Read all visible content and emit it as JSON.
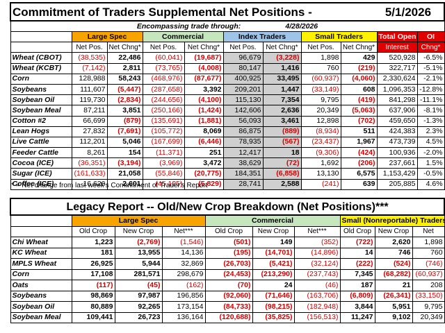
{
  "top": {
    "title": "Commitment of Traders Supplemental Net Positions -",
    "date": "5/1/2026",
    "encompassing_label": "Encompassing trade through:",
    "encompassing_date": "4/28/2026",
    "groups": [
      "Large Spec",
      "Commercial",
      "Index Traders",
      "Small Traders",
      "Total Open",
      "OI"
    ],
    "col_headers": [
      "Net Pos.",
      "Net Chng*",
      "Net Pos.",
      "Net Chng*",
      "Net Pos.",
      "Net Chng*",
      "Net Pos.",
      "Net Chng*",
      "Interest",
      "Chng*"
    ],
    "rows": [
      {
        "label": "Wheat (CBOT)",
        "v": [
          "(38,535)",
          "22,486",
          "(60,041)",
          "(19,687)",
          "96,679",
          "(3,228)",
          "1,898",
          "429",
          "520,928",
          "-6.5%"
        ]
      },
      {
        "label": "Wheat (KCBT)",
        "v": [
          "(7,142)",
          "2,811",
          "(73,765)",
          "(4,008)",
          "80,147",
          "1,416",
          "760",
          "(219)",
          "322,717",
          "-5.1%"
        ]
      },
      {
        "label": "Corn",
        "v": [
          "128,988",
          "58,243",
          "(468,976)",
          "(87,677)",
          "400,925",
          "33,495",
          "(60,937)",
          "(4,060)",
          "2,330,624",
          "-2.1%"
        ]
      },
      {
        "label": "Soybeans",
        "v": [
          "111,607",
          "(5,447)",
          "(287,658)",
          "3,392",
          "209,201",
          "1,447",
          "(33,149)",
          "608",
          "1,096,353",
          "-12.8%"
        ]
      },
      {
        "label": "Soybean Oil",
        "v": [
          "119,730",
          "(2,834)",
          "(244,656)",
          "(4,100)",
          "115,130",
          "7,354",
          "9,795",
          "(419)",
          "841,298",
          "-11.1%"
        ]
      },
      {
        "label": "Soybean Meal",
        "v": [
          "87,211",
          "3,851",
          "(250,166)",
          "(1,424)",
          "142,606",
          "2,636",
          "20,349",
          "(5,063)",
          "637,906",
          "-8.1%"
        ]
      },
      {
        "label": "Cotton #2",
        "v": [
          "66,699",
          "(879)",
          "(135,691)",
          "(1,881)",
          "56,093",
          "3,461",
          "12,898",
          "(702)",
          "459,650",
          "-1.3%"
        ]
      },
      {
        "label": "Lean Hogs",
        "v": [
          "27,832",
          "(7,691)",
          "(105,772)",
          "8,069",
          "86,875",
          "(889)",
          "(8,934)",
          "511",
          "424,383",
          "2.3%"
        ]
      },
      {
        "label": "Live Cattle",
        "v": [
          "112,201",
          "5,046",
          "(167,699)",
          "(6,446)",
          "78,935",
          "(567)",
          "(23,437)",
          "1,967",
          "473,739",
          "4.5%"
        ]
      },
      {
        "label": "Feeder Cattle",
        "v": [
          "8,261",
          "154",
          "(11,371)",
          "251",
          "12,417",
          "18",
          "(9,306)",
          "(424)",
          "100,936",
          "-2.0%"
        ]
      },
      {
        "label": "Cocoa (ICE)",
        "v": [
          "(36,351)",
          "(3,194)",
          "(3,969)",
          "3,472",
          "38,629",
          "(72)",
          "1,692",
          "(206)",
          "237,661",
          "1.5%"
        ]
      },
      {
        "label": "Sugar (ICE)",
        "v": [
          "(161,633)",
          "21,058",
          "(55,846)",
          "(20,775)",
          "184,351",
          "(6,858)",
          "13,130",
          "6,575",
          "1,153,429",
          "-0.5%"
        ]
      },
      {
        "label": "Coffee (ICE)",
        "v": [
          "16,626",
          "2,601",
          "(45,125)",
          "(5,829)",
          "28,741",
          "2,588",
          "(241)",
          "639",
          "205,885",
          "4.6%"
        ]
      }
    ],
    "footnote": "* = Net change from last week's Commitment of Trader's Report"
  },
  "bottom": {
    "title": "Legacy Report -- Old/New Crop Breakdown (Net Positions)***",
    "groups": [
      "Large Spec",
      "Commercial",
      "Small (Nonreportable) Traders"
    ],
    "col_headers": [
      "Old Crop",
      "New Crop",
      "Net***",
      "Old Crop",
      "New Crop",
      "Net***",
      "Old Crop",
      "New Crop",
      "Net"
    ],
    "rows": [
      {
        "label": "Chi Wheat",
        "v": [
          "1,223",
          "(2,769)",
          "(1,546)",
          "(501)",
          "149",
          "(352)",
          "(722)",
          "2,620",
          "1,898"
        ]
      },
      {
        "label": "KC Wheat",
        "v": [
          "181",
          "13,955",
          "14,136",
          "(195)",
          "(14,701)",
          "(14,896)",
          "14",
          "746",
          "760"
        ]
      },
      {
        "label": "MPLS Wheat",
        "v": [
          "26,925",
          "5,944",
          "32,869",
          "(26,703)",
          "(5,421)",
          "(32,124)",
          "(222)",
          "(524)",
          "(746)"
        ]
      },
      {
        "label": "Corn",
        "v": [
          "17,108",
          "281,571",
          "298,679",
          "(24,453)",
          "(213,290)",
          "(237,743)",
          "7,345",
          "(68,282)",
          "(60,937)"
        ]
      },
      {
        "label": "Oats",
        "v": [
          "(117)",
          "(45)",
          "(162)",
          "(70)",
          "24",
          "(46)",
          "187",
          "21",
          "208"
        ]
      },
      {
        "label": "Soybeans",
        "v": [
          "98,869",
          "97,987",
          "196,856",
          "(92,060)",
          "(71,646)",
          "(163,706)",
          "(6,809)",
          "(26,341)",
          "(33,150)"
        ]
      },
      {
        "label": "Soybean Oil",
        "v": [
          "80,889",
          "92,265",
          "173,154",
          "(84,733)",
          "(98,215)",
          "(182,948)",
          "3,844",
          "5,951",
          "9,795"
        ]
      },
      {
        "label": "Soybean Meal",
        "v": [
          "109,441",
          "26,723",
          "136,164",
          "(120,688)",
          "(35,825)",
          "(156,513)",
          "11,247",
          "9,102",
          "20,349"
        ]
      }
    ]
  }
}
